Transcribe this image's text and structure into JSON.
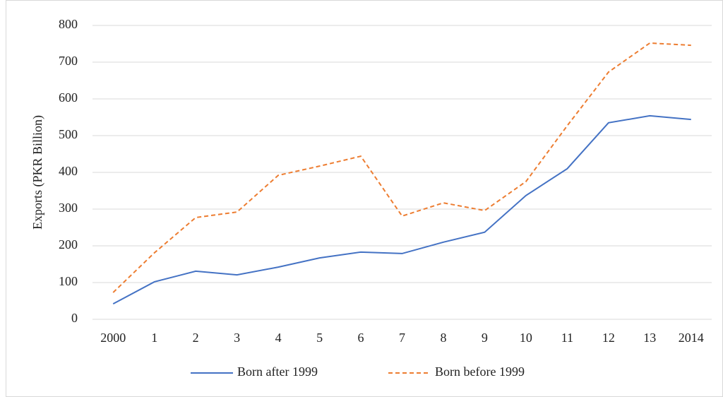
{
  "chart_data": {
    "type": "line",
    "y_label": "Exports (PKR Billion)",
    "categories": [
      "2000",
      "1",
      "2",
      "3",
      "4",
      "5",
      "6",
      "7",
      "8",
      "9",
      "10",
      "11",
      "12",
      "13",
      "2014"
    ],
    "series": [
      {
        "name": "Born after 1999",
        "color": "#4472c4",
        "dashed": false,
        "values": [
          42,
          102,
          131,
          121,
          142,
          167,
          183,
          179,
          210,
          237,
          337,
          410,
          535,
          554,
          544
        ]
      },
      {
        "name": "Born before 1999",
        "color": "#ed7d31",
        "dashed": true,
        "values": [
          73,
          181,
          277,
          292,
          392,
          417,
          444,
          281,
          317,
          296,
          375,
          527,
          673,
          752,
          746
        ]
      }
    ],
    "ylim": [
      0,
      800
    ],
    "yticks": [
      0,
      100,
      200,
      300,
      400,
      500,
      600,
      700,
      800
    ],
    "grid": true,
    "legend": "bottom"
  }
}
